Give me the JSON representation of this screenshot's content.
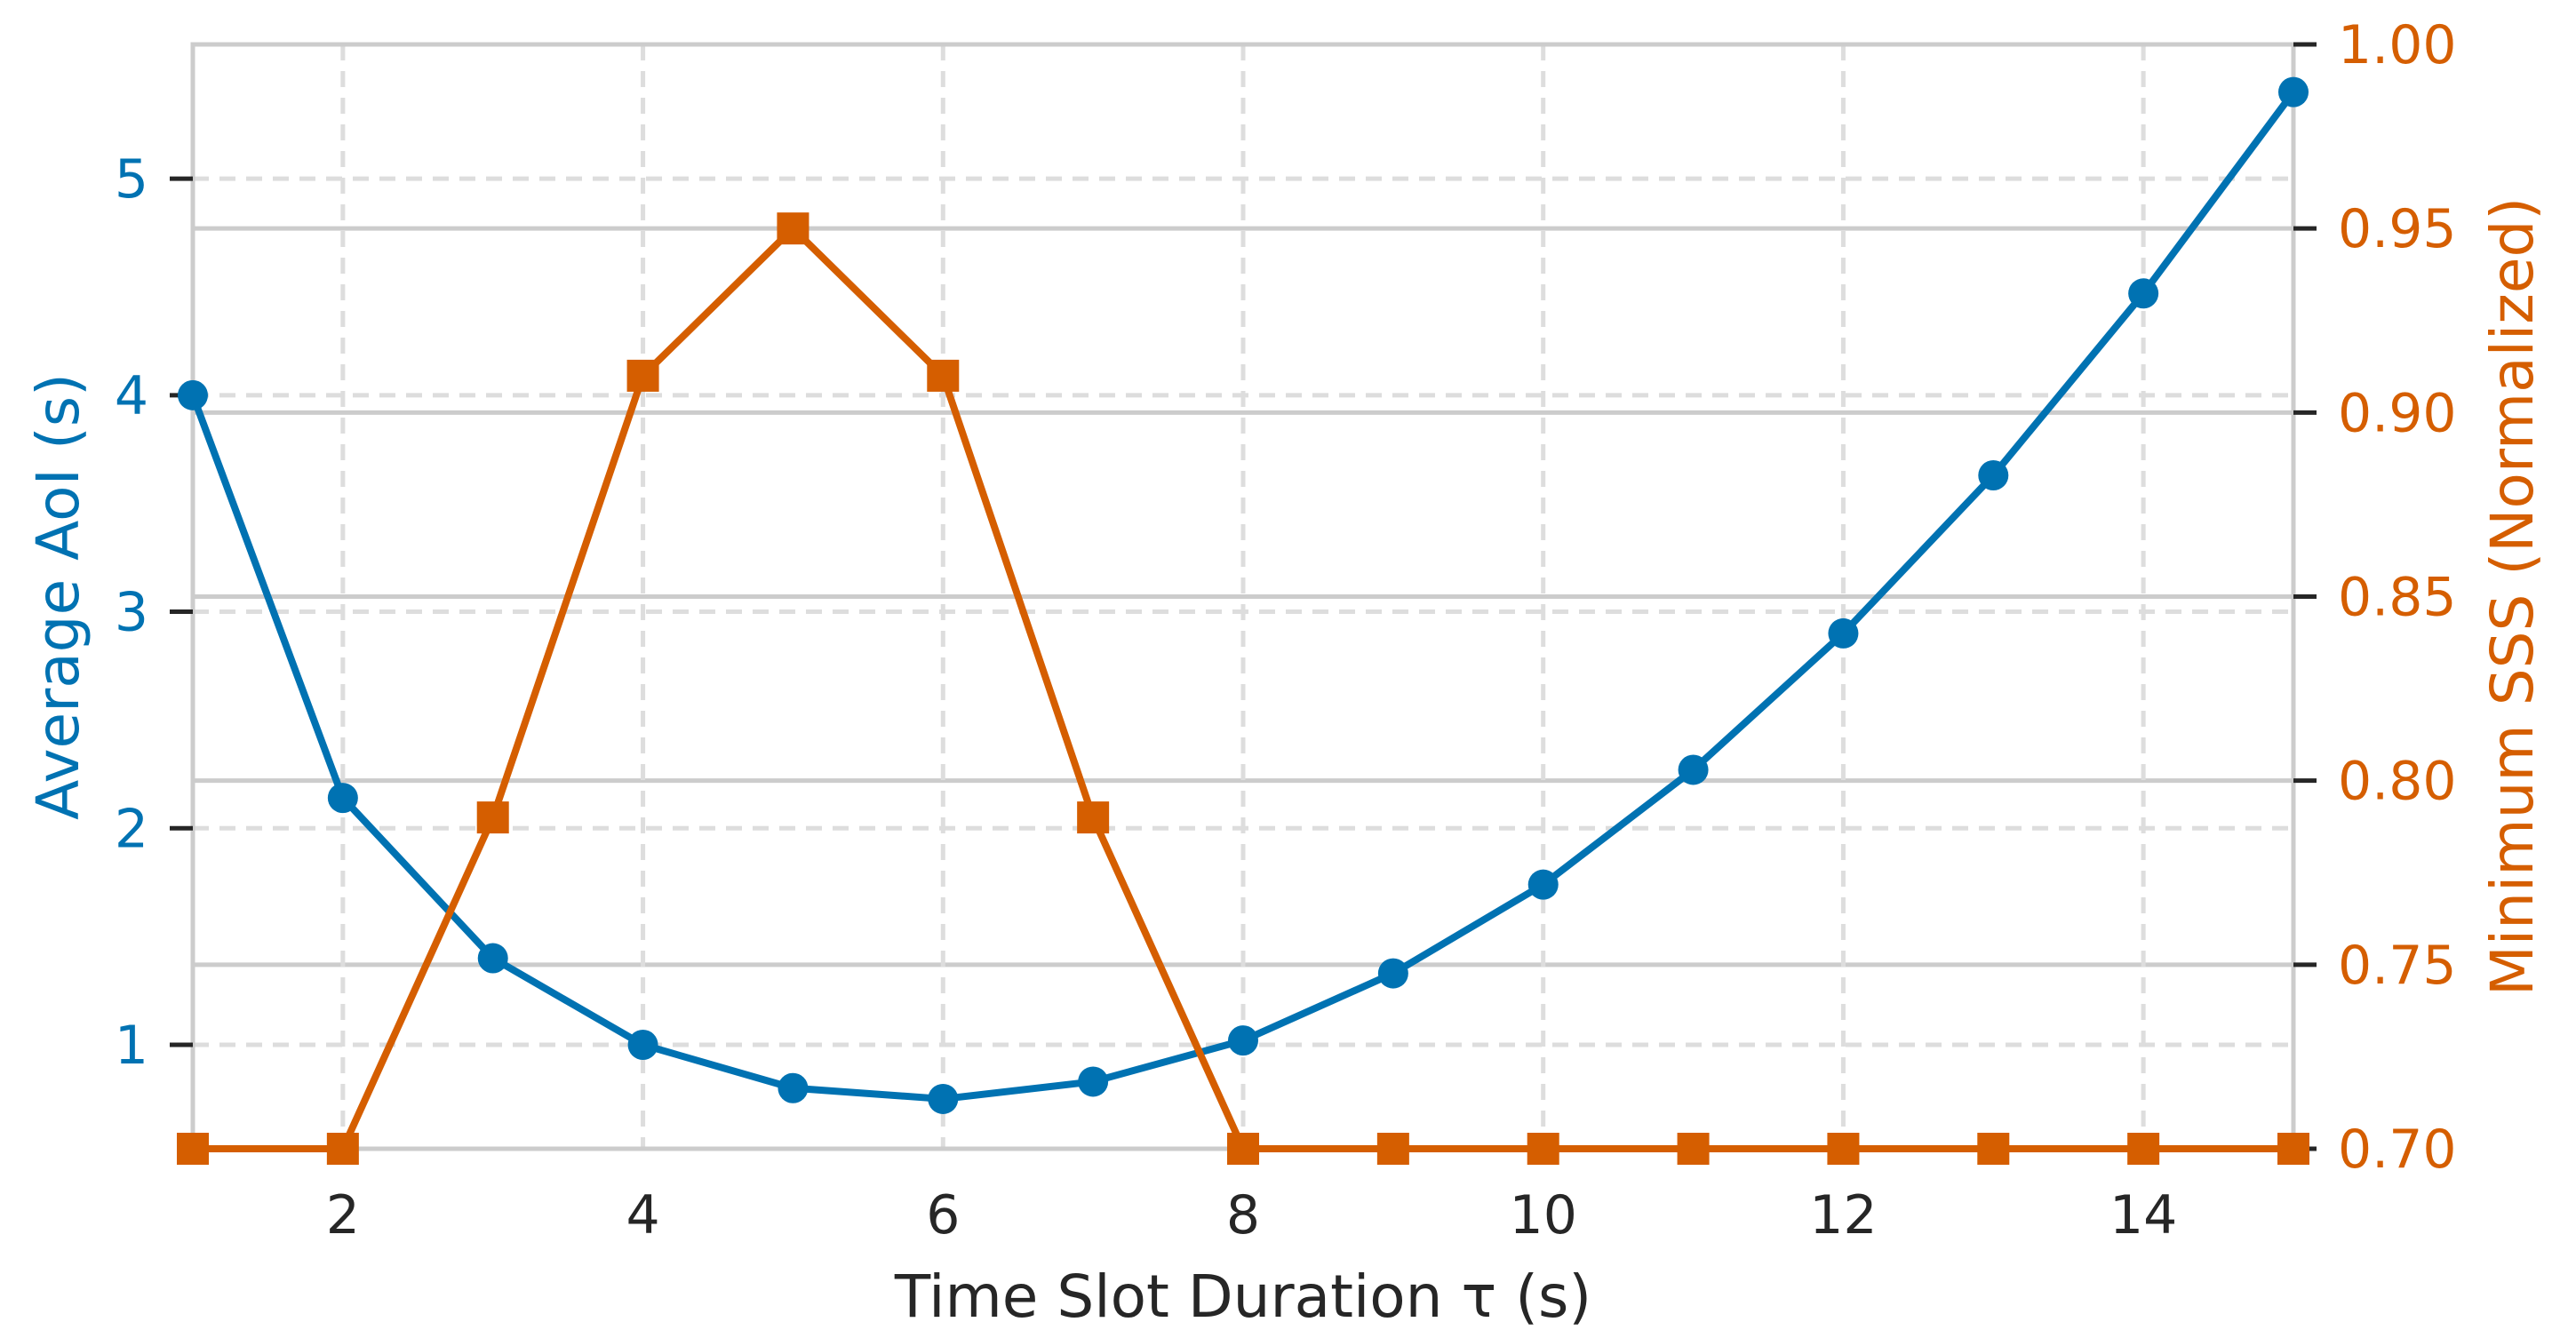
{
  "chart_data": {
    "type": "line",
    "title": "",
    "xlabel": "Time Slot Duration τ (s)",
    "ylabel_left": "Average AoI (s)",
    "ylabel_right": "Minimum SSS (Normalized)",
    "xlim": [
      1,
      15
    ],
    "ylim_left": [
      0.52,
      5.62
    ],
    "ylim_right": [
      0.7,
      1.0
    ],
    "x_ticks": [
      2,
      4,
      6,
      8,
      10,
      12,
      14
    ],
    "x_tick_labels": [
      "2",
      "4",
      "6",
      "8",
      "10",
      "12",
      "14"
    ],
    "y_left_ticks": [
      1,
      2,
      3,
      4,
      5
    ],
    "y_left_tick_labels": [
      "1",
      "2",
      "3",
      "4",
      "5"
    ],
    "y_right_ticks": [
      0.7,
      0.75,
      0.8,
      0.85,
      0.9,
      0.95,
      1.0
    ],
    "y_right_tick_labels": [
      "0.70",
      "0.75",
      "0.80",
      "0.85",
      "0.90",
      "0.95",
      "1.00"
    ],
    "grid": true,
    "x": [
      1,
      2,
      3,
      4,
      5,
      6,
      7,
      8,
      9,
      10,
      11,
      12,
      13,
      14,
      15
    ],
    "series": [
      {
        "axis": "left",
        "marker": "circle",
        "color": "#0072b2",
        "values": [
          4.0,
          2.14,
          1.4,
          1.0,
          0.8,
          0.75,
          0.83,
          1.02,
          1.33,
          1.74,
          2.27,
          2.9,
          3.63,
          4.47,
          5.4
        ]
      },
      {
        "axis": "right",
        "marker": "square",
        "color": "#d55e00",
        "values": [
          0.7,
          0.7,
          0.79,
          0.91,
          0.95,
          0.91,
          0.79,
          0.7,
          0.7,
          0.7,
          0.7,
          0.7,
          0.7,
          0.7,
          0.7
        ]
      }
    ]
  }
}
